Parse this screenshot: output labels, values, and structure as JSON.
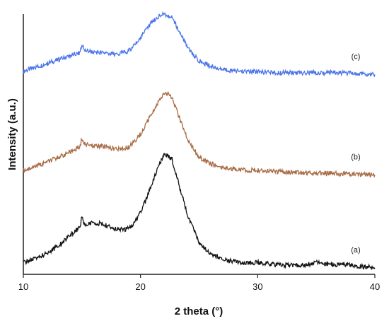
{
  "chart_data": {
    "type": "line",
    "title": "",
    "xlabel": "2 theta (°)",
    "ylabel": "Intensity (a.u.)",
    "xlim": [
      10,
      40
    ],
    "ylim": [
      0,
      1
    ],
    "x_ticks": [
      "10",
      "20",
      "30",
      "40"
    ],
    "grid": false,
    "series": [
      {
        "name": "(c)",
        "color": "#4a74e8",
        "x": [
          10,
          11,
          12,
          13,
          14,
          14.8,
          15.0,
          15.2,
          16,
          17,
          18,
          19,
          19.5,
          20,
          20.5,
          21,
          21.5,
          22,
          22.3,
          22.7,
          23,
          23.5,
          24,
          24.5,
          25,
          26,
          27,
          28,
          29,
          30,
          31,
          32,
          34,
          35,
          36,
          38,
          39,
          40
        ],
        "y": [
          0.78,
          0.795,
          0.81,
          0.825,
          0.84,
          0.85,
          0.885,
          0.86,
          0.855,
          0.85,
          0.845,
          0.858,
          0.88,
          0.91,
          0.94,
          0.97,
          0.99,
          1.0,
          0.995,
          0.985,
          0.96,
          0.92,
          0.87,
          0.845,
          0.82,
          0.8,
          0.788,
          0.782,
          0.78,
          0.778,
          0.776,
          0.775,
          0.774,
          0.776,
          0.775,
          0.773,
          0.77,
          0.768
        ]
      },
      {
        "name": "(b)",
        "color": "#a86b45",
        "x": [
          10,
          11,
          12,
          13,
          14,
          14.8,
          15.0,
          15.2,
          16,
          17,
          18,
          19,
          19.5,
          20,
          20.5,
          21,
          21.5,
          22,
          22.3,
          22.7,
          23,
          23.5,
          24,
          24.5,
          25,
          26,
          27,
          28,
          29,
          30,
          31,
          32,
          34,
          35,
          36,
          38,
          39,
          40
        ],
        "y": [
          0.4,
          0.415,
          0.43,
          0.45,
          0.47,
          0.49,
          0.52,
          0.5,
          0.495,
          0.49,
          0.48,
          0.49,
          0.51,
          0.54,
          0.58,
          0.62,
          0.66,
          0.7,
          0.695,
          0.68,
          0.64,
          0.58,
          0.52,
          0.485,
          0.45,
          0.425,
          0.41,
          0.405,
          0.4,
          0.4,
          0.395,
          0.395,
          0.39,
          0.39,
          0.388,
          0.385,
          0.384,
          0.382
        ]
      },
      {
        "name": "(a)",
        "color": "#111111",
        "x": [
          10,
          11,
          12,
          13,
          14,
          14.8,
          15.0,
          15.2,
          16,
          17,
          18,
          19,
          19.5,
          20,
          20.5,
          21,
          21.5,
          22,
          22.3,
          22.7,
          23,
          23.5,
          24,
          24.5,
          25,
          26,
          27,
          28,
          29,
          30,
          31,
          32,
          34,
          35,
          36,
          38,
          39,
          40
        ],
        "y": [
          0.045,
          0.06,
          0.08,
          0.11,
          0.15,
          0.18,
          0.22,
          0.19,
          0.2,
          0.19,
          0.17,
          0.175,
          0.2,
          0.24,
          0.29,
          0.35,
          0.41,
          0.46,
          0.455,
          0.44,
          0.39,
          0.31,
          0.23,
          0.18,
          0.12,
          0.08,
          0.06,
          0.05,
          0.045,
          0.045,
          0.04,
          0.035,
          0.035,
          0.045,
          0.04,
          0.035,
          0.03,
          0.025
        ]
      }
    ]
  }
}
